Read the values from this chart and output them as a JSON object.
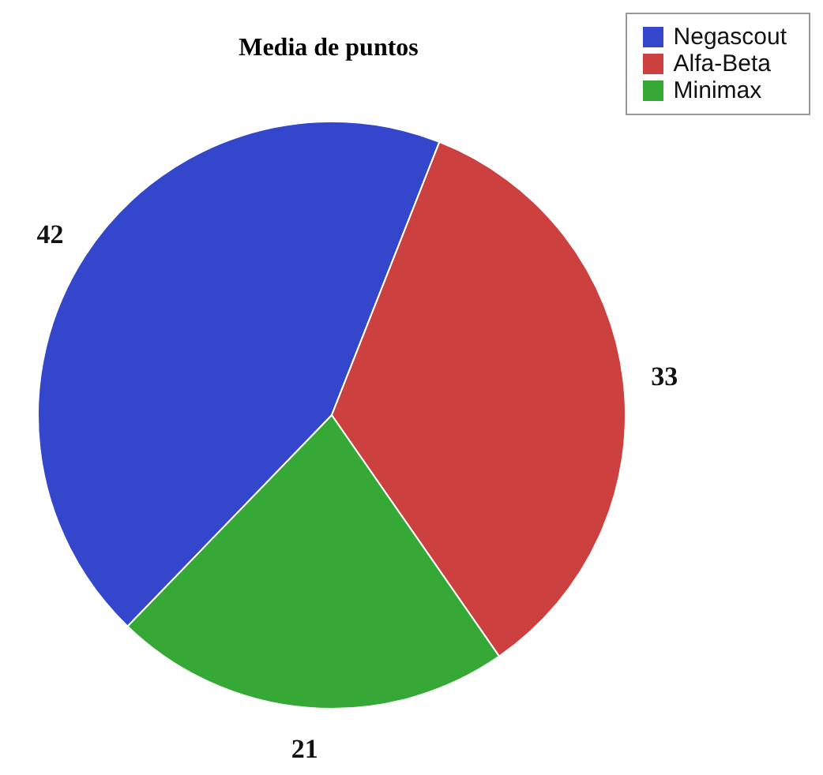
{
  "chart_data": {
    "type": "pie",
    "title": "Media de puntos",
    "categories": [
      "Negascout",
      "Alfa-Beta",
      "Minimax"
    ],
    "values": [
      42,
      33,
      21
    ],
    "colors": [
      "#3346cc",
      "#cc4040",
      "#36a836"
    ],
    "data_labels": true,
    "legend": "top right"
  }
}
